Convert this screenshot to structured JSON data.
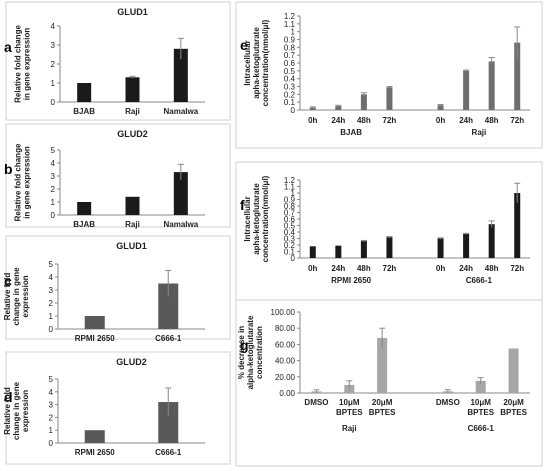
{
  "colors": {
    "black_bar": "#1a1a1a",
    "dark_gray_bar": "#4d4d4d",
    "gray_bar": "#7a7a7a",
    "light_bar": "#a6a6a6",
    "axis": "#888888",
    "error": "#888888"
  },
  "chart_data": [
    {
      "panel": "a",
      "type": "bar",
      "title": "GLUD1",
      "ylabel": "Relative fold change in gene expression",
      "categories": [
        "BJAB",
        "Raji",
        "Namalwa"
      ],
      "values": [
        1.0,
        1.3,
        2.8
      ],
      "errors": [
        0,
        0.05,
        0.55
      ],
      "ylim": [
        0,
        4
      ],
      "yticks": [
        "0",
        "1",
        "2",
        "3",
        "4"
      ],
      "color": "#1a1a1a"
    },
    {
      "panel": "b",
      "type": "bar",
      "title": "GLUD2",
      "ylabel": "Relative fold change in gene expression",
      "categories": [
        "BJAB",
        "Raji",
        "Namalwa"
      ],
      "values": [
        1.0,
        1.4,
        3.3
      ],
      "errors": [
        0,
        0,
        0.6
      ],
      "ylim": [
        0,
        5
      ],
      "yticks": [
        "0",
        "1",
        "2",
        "3",
        "4",
        "5"
      ],
      "color": "#1a1a1a"
    },
    {
      "panel": "c",
      "type": "bar",
      "title": "GLUD1",
      "ylabel": "Relative fold change in gene expression",
      "categories": [
        "RPMI 2650",
        "C666-1"
      ],
      "values": [
        1.0,
        3.5
      ],
      "errors": [
        0,
        1.0
      ],
      "ylim": [
        0,
        5
      ],
      "yticks": [
        "0",
        "1",
        "2",
        "3",
        "4",
        "5"
      ],
      "color": "#595959"
    },
    {
      "panel": "d",
      "type": "bar",
      "title": "GLUD2",
      "ylabel": "Relative fold change in gene expression",
      "categories": [
        "RPMI 2650",
        "C666-1"
      ],
      "values": [
        1.0,
        3.2
      ],
      "errors": [
        0,
        1.1
      ],
      "ylim": [
        0,
        5
      ],
      "yticks": [
        "0",
        "1",
        "2",
        "3",
        "4",
        "5"
      ],
      "color": "#595959"
    },
    {
      "panel": "e",
      "type": "bar",
      "title": "",
      "ylabel": "Intracellular apha-ketoglutarate concentration(nmol/μl)",
      "groups": [
        "BJAB",
        "Raji"
      ],
      "categories": [
        "0h",
        "24h",
        "48h",
        "72h",
        "0h",
        "24h",
        "48h",
        "72h"
      ],
      "values": [
        0.03,
        0.05,
        0.2,
        0.29,
        0.06,
        0.5,
        0.62,
        0.86
      ],
      "errors": [
        0.01,
        0.01,
        0.02,
        0.01,
        0.01,
        0.01,
        0.05,
        0.2
      ],
      "ylim": [
        0,
        1.2
      ],
      "yticks": [
        "0",
        "0.1",
        "0.2",
        "0.3",
        "0.4",
        "0.5",
        "0.6",
        "0.7",
        "0.8",
        "0.9",
        "1",
        "1.1",
        "1.2"
      ],
      "color": "#6e6e6e"
    },
    {
      "panel": "f",
      "type": "bar",
      "title": "",
      "ylabel": "Intracellular apha-ketoglutarate concentration(nmol/μl)",
      "groups": [
        "RPMI 2650",
        "C666-1"
      ],
      "categories": [
        "0h",
        "24h",
        "48h",
        "72h",
        "0h",
        "24h",
        "48h",
        "72h"
      ],
      "values": [
        0.18,
        0.19,
        0.26,
        0.32,
        0.3,
        0.37,
        0.52,
        1.0
      ],
      "errors": [
        0,
        0,
        0.01,
        0.01,
        0.01,
        0.01,
        0.05,
        0.15
      ],
      "ylim": [
        0,
        1.2
      ],
      "yticks": [
        "0",
        "0.1",
        "0.2",
        "0.3",
        "0.4",
        "0.5",
        "0.6",
        "0.7",
        "0.8",
        "0.9",
        "1",
        "1.1",
        "1.2"
      ],
      "color": "#1a1a1a"
    },
    {
      "panel": "g",
      "type": "bar",
      "title": "",
      "ylabel": "% decrease in alpha-ketoglutarate concentration",
      "groups": [
        "Raji",
        "C666-1"
      ],
      "categories": [
        "DMSO",
        "10μM BPTES",
        "20μM BPTES",
        "DMSO",
        "10μM BPTES",
        "20μM BPTES"
      ],
      "values": [
        2,
        10,
        68,
        2,
        15,
        55
      ],
      "errors": [
        2,
        5,
        12,
        2,
        4,
        0
      ],
      "ylim": [
        0,
        100
      ],
      "yticks": [
        "0.00",
        "20.00",
        "40.00",
        "60.00",
        "80.00",
        "100.00"
      ],
      "color": "#a6a6a6"
    }
  ]
}
